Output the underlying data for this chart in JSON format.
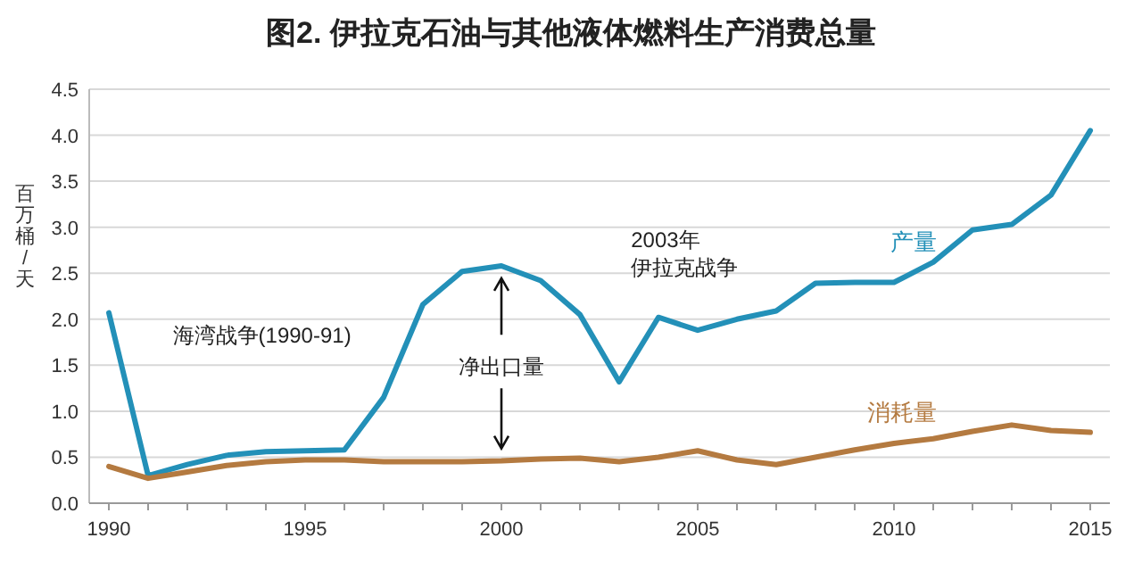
{
  "chart_data": {
    "type": "line",
    "title": "图2. 伊拉克石油与其他液体燃料生产消费总量",
    "ylabel": "百万桶/天",
    "x": [
      1990,
      1991,
      1992,
      1993,
      1994,
      1995,
      1996,
      1997,
      1998,
      1999,
      2000,
      2001,
      2002,
      2003,
      2004,
      2005,
      2006,
      2007,
      2008,
      2009,
      2010,
      2011,
      2012,
      2013,
      2014,
      2015
    ],
    "series": [
      {
        "name": "产量",
        "color": "#2390b8",
        "values": [
          2.07,
          0.3,
          0.42,
          0.52,
          0.56,
          0.57,
          0.58,
          1.15,
          2.16,
          2.52,
          2.58,
          2.42,
          2.05,
          1.32,
          2.02,
          1.88,
          2.0,
          2.09,
          2.39,
          2.4,
          2.4,
          2.62,
          2.97,
          3.03,
          3.35,
          4.05
        ]
      },
      {
        "name": "消耗量",
        "color": "#b47a40",
        "values": [
          0.4,
          0.27,
          0.34,
          0.41,
          0.45,
          0.47,
          0.47,
          0.45,
          0.45,
          0.45,
          0.46,
          0.48,
          0.49,
          0.45,
          0.5,
          0.57,
          0.47,
          0.42,
          0.5,
          0.58,
          0.65,
          0.7,
          0.78,
          0.85,
          0.79,
          0.77
        ]
      }
    ],
    "annotations": [
      "海湾战争(1990-91)",
      "2003年",
      "伊拉克战争",
      {
        "text": "净出口量",
        "x": 2000,
        "y": 2.58
      }
    ],
    "xlim": [
      1989.5,
      2015.5
    ],
    "xticks": [
      1990,
      1995,
      2000,
      2005,
      2010,
      2015
    ],
    "ylim": [
      0,
      4.5
    ],
    "yticks": [
      {
        "value": 0,
        "label": "0.0"
      },
      {
        "value": 0.5,
        "label": "0.5"
      },
      {
        "value": 1,
        "label": "1.0"
      },
      {
        "value": 1.5,
        "label": "1.5"
      },
      {
        "value": 2,
        "label": "2.0"
      },
      {
        "value": 2.5,
        "label": "2.5"
      },
      {
        "value": 3,
        "label": "3.0"
      },
      {
        "value": 3.5,
        "label": "3.5"
      },
      {
        "value": 4,
        "label": "4.0"
      },
      {
        "value": 4.5,
        "label": "4.5"
      }
    ],
    "grid": "y",
    "legend": false,
    "marker": "none",
    "line_style": "solid"
  }
}
